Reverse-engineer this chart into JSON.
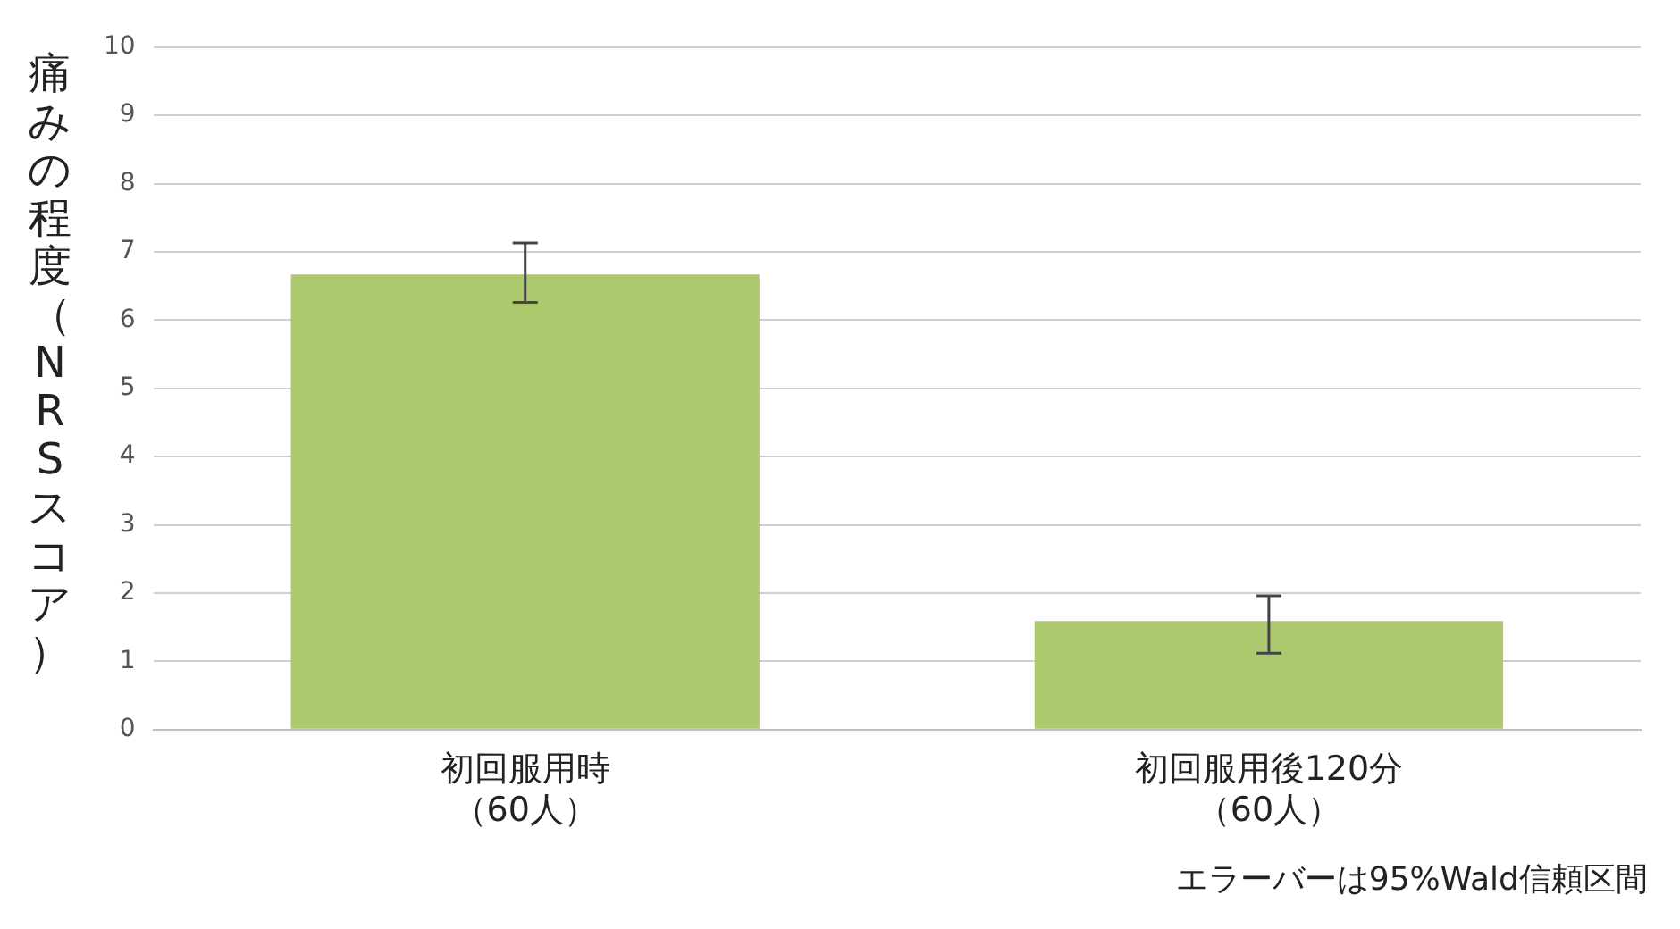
{
  "chart_data": {
    "type": "bar",
    "ylabel": "痛みの程度（NRSスコア）",
    "categories": [
      "初回服用時（60人）",
      "初回服用後120分（60人）"
    ],
    "values": [
      6.67,
      1.59
    ],
    "errors": [
      [
        6.26,
        7.13
      ],
      [
        1.12,
        1.96
      ]
    ],
    "color": "#adc96e",
    "ylim": [
      0,
      10
    ],
    "yticks": [
      0,
      1,
      2,
      3,
      4,
      5,
      6,
      7,
      8,
      9,
      10
    ],
    "grid": "y",
    "legend": false,
    "annotations": [
      "エラーバーは95%Wald信頼区間"
    ]
  }
}
